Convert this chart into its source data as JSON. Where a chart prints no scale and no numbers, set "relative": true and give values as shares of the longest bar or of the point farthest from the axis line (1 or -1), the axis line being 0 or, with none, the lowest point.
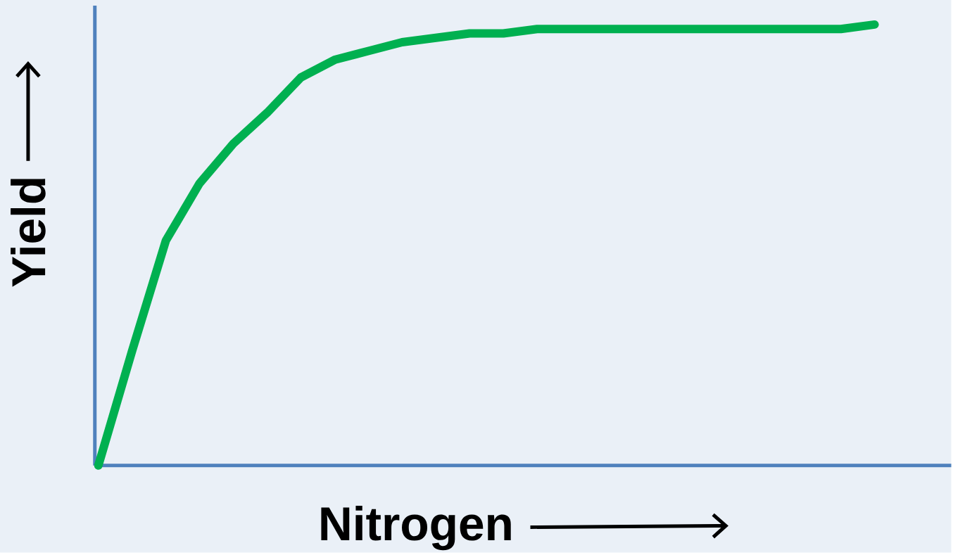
{
  "chart_data": {
    "type": "line",
    "xlabel": "Nitrogen",
    "ylabel": "Yield",
    "relative": true,
    "color": "#00b050",
    "categories": [
      null,
      null,
      null,
      null,
      null,
      null,
      null,
      null,
      null,
      null,
      null,
      null,
      null,
      null,
      null,
      null,
      null,
      null,
      null,
      null,
      null,
      null,
      null,
      null
    ],
    "values": [
      0,
      0.26,
      0.51,
      0.64,
      0.73,
      0.8,
      0.88,
      0.92,
      0.94,
      0.96,
      0.97,
      0.98,
      0.98,
      0.99,
      0.99,
      0.99,
      0.99,
      0.99,
      0.99,
      0.99,
      0.99,
      0.99,
      0.99,
      1
    ]
  }
}
